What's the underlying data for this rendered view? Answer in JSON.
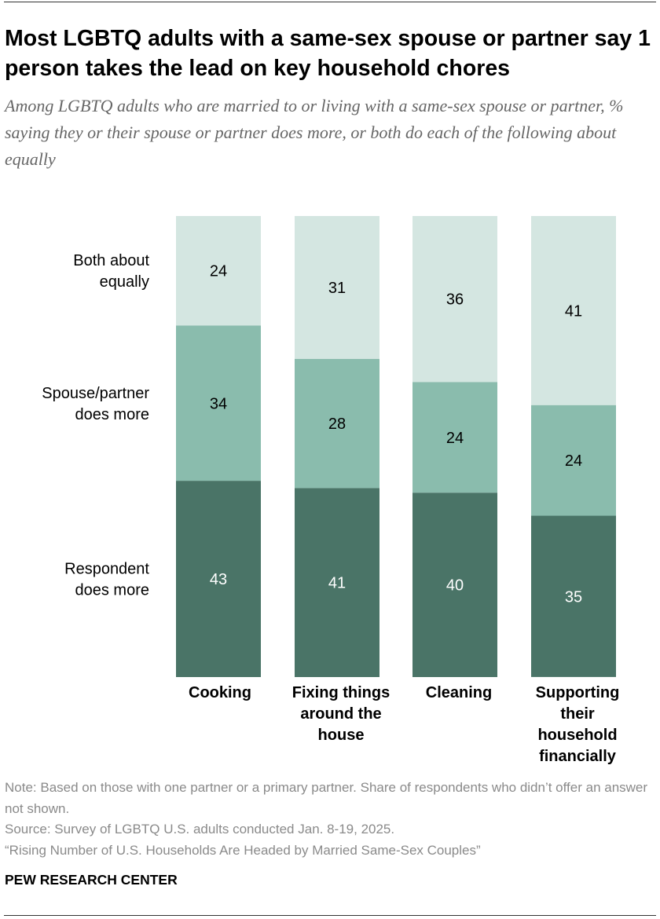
{
  "title": "Most LGBTQ adults with a same-sex spouse or partner say 1 person takes the lead on key household chores",
  "subtitle": "Among LGBTQ adults who are married to or living with a same-sex spouse or partner, % saying they or their spouse or partner does more, or both do each of the following about equally",
  "chart_data": {
    "type": "bar",
    "stacked": true,
    "orientation": "vertical",
    "categories": [
      "Cooking",
      "Fixing things around the house",
      "Cleaning",
      "Supporting their household financially"
    ],
    "category_lines": [
      [
        "Cooking"
      ],
      [
        "Fixing things",
        "around the",
        "house"
      ],
      [
        "Cleaning"
      ],
      [
        "Supporting",
        "their",
        "household",
        "financially"
      ]
    ],
    "series": [
      {
        "name": "Respondent does more",
        "name_lines": [
          "Respondent",
          "does more"
        ],
        "values": [
          43,
          41,
          40,
          35
        ],
        "color": "#4a7467",
        "label_color": "#ffffff"
      },
      {
        "name": "Spouse/partner does more",
        "name_lines": [
          "Spouse/partner",
          "does more"
        ],
        "values": [
          34,
          28,
          24,
          24
        ],
        "color": "#8abcad",
        "label_color": "#000000"
      },
      {
        "name": "Both about equally",
        "name_lines": [
          "Both about",
          "equally"
        ],
        "values": [
          24,
          31,
          36,
          41
        ],
        "color": "#d4e6e1",
        "label_color": "#000000"
      }
    ],
    "legend_position": "left",
    "grid": false
  },
  "notes": {
    "note": "Note: Based on those with one partner or a primary partner. Share of respondents who didn’t offer an answer not shown.",
    "source": "Source: Survey of LGBTQ U.S. adults conducted Jan. 8-19, 2025.",
    "report": "“Rising Number of U.S. Households Are Headed by Married Same-Sex Couples”"
  },
  "brand": "PEW RESEARCH CENTER"
}
